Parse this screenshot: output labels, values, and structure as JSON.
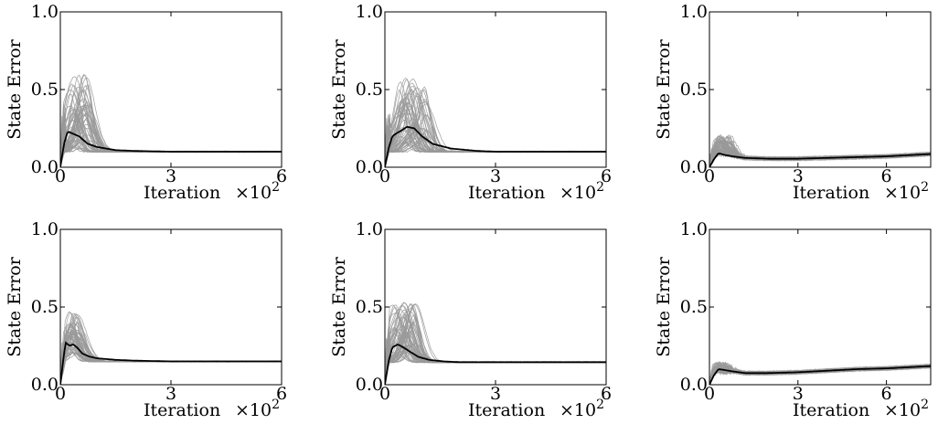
{
  "chart_data": [
    {
      "type": "line",
      "xlabel": "Iteration",
      "x_scale_label": "×10",
      "x_scale_exp": "2",
      "ylabel": "State Error",
      "xlim": [
        0,
        6
      ],
      "ylim": [
        0,
        1
      ],
      "xticks": [
        0,
        3,
        6
      ],
      "xtick_labels": [
        "0",
        "3",
        "6"
      ],
      "yticks": [
        0,
        0.5,
        1
      ],
      "ytick_labels": [
        "0.0",
        "0.5",
        "1.0"
      ],
      "series": [
        {
          "role": "individual runs",
          "color": "#999999",
          "count": 60,
          "peak_range": [
            0.12,
            0.6
          ],
          "peak_x_range": [
            0.25,
            0.75
          ],
          "final": 0.1
        },
        {
          "role": "mean",
          "color": "#000000",
          "x": [
            0,
            0.1,
            0.2,
            0.3,
            0.5,
            0.75,
            1.0,
            1.5,
            2.0,
            3.0,
            4.0,
            5.0,
            6.0
          ],
          "y": [
            0,
            0.15,
            0.23,
            0.22,
            0.2,
            0.15,
            0.13,
            0.11,
            0.105,
            0.1,
            0.1,
            0.1,
            0.1
          ]
        }
      ]
    },
    {
      "type": "line",
      "xlabel": "Iteration",
      "x_scale_label": "×10",
      "x_scale_exp": "2",
      "ylabel": "State Error",
      "xlim": [
        0,
        6
      ],
      "ylim": [
        0,
        1
      ],
      "xticks": [
        0,
        3,
        6
      ],
      "xtick_labels": [
        "0",
        "3",
        "6"
      ],
      "yticks": [
        0,
        0.5,
        1
      ],
      "ytick_labels": [
        "0.0",
        "0.5",
        "1.0"
      ],
      "series": [
        {
          "role": "individual runs",
          "color": "#999999",
          "count": 60,
          "peak_range": [
            0.15,
            0.58
          ],
          "peak_x_range": [
            0.35,
            1.15
          ],
          "final": 0.1
        },
        {
          "role": "mean",
          "color": "#000000",
          "x": [
            0,
            0.1,
            0.2,
            0.4,
            0.6,
            0.8,
            1.0,
            1.3,
            1.8,
            2.5,
            3.0,
            4.0,
            5.0,
            6.0
          ],
          "y": [
            0,
            0.12,
            0.2,
            0.23,
            0.26,
            0.25,
            0.2,
            0.15,
            0.12,
            0.105,
            0.1,
            0.1,
            0.1,
            0.1
          ]
        }
      ]
    },
    {
      "type": "line",
      "xlabel": "Iteration",
      "x_scale_label": "×10",
      "x_scale_exp": "2",
      "ylabel": "State Error",
      "xlim": [
        0,
        7.5
      ],
      "ylim": [
        0,
        1
      ],
      "xticks": [
        0,
        3,
        6
      ],
      "xtick_labels": [
        "0",
        "3",
        "6"
      ],
      "yticks": [
        0,
        0.5,
        1
      ],
      "ytick_labels": [
        "0.0",
        "0.5",
        "1.0"
      ],
      "series": [
        {
          "role": "individual runs",
          "color": "#999999",
          "count": 60,
          "peak_range": [
            0.06,
            0.2
          ],
          "peak_x_range": [
            0.3,
            0.7
          ],
          "final": 0.08
        },
        {
          "role": "mean",
          "color": "#000000",
          "x": [
            0,
            0.15,
            0.3,
            0.5,
            0.8,
            1.2,
            2.0,
            3.0,
            4.0,
            5.0,
            6.0,
            7.0,
            7.5
          ],
          "y": [
            0,
            0.05,
            0.09,
            0.08,
            0.07,
            0.06,
            0.055,
            0.055,
            0.06,
            0.065,
            0.07,
            0.08,
            0.085
          ]
        }
      ]
    },
    {
      "type": "line",
      "xlabel": "Iteration",
      "x_scale_label": "×10",
      "x_scale_exp": "2",
      "ylabel": "State Error",
      "xlim": [
        0,
        6
      ],
      "ylim": [
        0,
        1
      ],
      "xticks": [
        0,
        3,
        6
      ],
      "xtick_labels": [
        "0",
        "3",
        "6"
      ],
      "yticks": [
        0,
        0.5,
        1
      ],
      "ytick_labels": [
        "0.0",
        "0.5",
        "1.0"
      ],
      "series": [
        {
          "role": "individual runs",
          "color": "#999999",
          "count": 60,
          "peak_range": [
            0.2,
            0.48
          ],
          "peak_x_range": [
            0.15,
            0.5
          ],
          "final": 0.15
        },
        {
          "role": "mean",
          "color": "#000000",
          "x": [
            0,
            0.1,
            0.15,
            0.25,
            0.35,
            0.45,
            0.6,
            0.8,
            1.0,
            1.5,
            2.0,
            3.0,
            4.0,
            5.0,
            6.0
          ],
          "y": [
            0,
            0.2,
            0.27,
            0.25,
            0.26,
            0.24,
            0.2,
            0.18,
            0.17,
            0.16,
            0.155,
            0.15,
            0.15,
            0.15,
            0.15
          ]
        }
      ]
    },
    {
      "type": "line",
      "xlabel": "Iteration",
      "x_scale_label": "×10",
      "x_scale_exp": "2",
      "ylabel": "State Error",
      "xlim": [
        0,
        6
      ],
      "ylim": [
        0,
        1
      ],
      "xticks": [
        0,
        3,
        6
      ],
      "xtick_labels": [
        "0",
        "3",
        "6"
      ],
      "yticks": [
        0,
        0.5,
        1
      ],
      "ytick_labels": [
        "0.0",
        "0.5",
        "1.0"
      ],
      "series": [
        {
          "role": "individual runs",
          "color": "#999999",
          "count": 60,
          "peak_range": [
            0.2,
            0.53
          ],
          "peak_x_range": [
            0.2,
            0.85
          ],
          "final": 0.145
        },
        {
          "role": "mean",
          "color": "#000000",
          "x": [
            0,
            0.1,
            0.2,
            0.35,
            0.5,
            0.7,
            0.9,
            1.2,
            1.6,
            2.0,
            3.0,
            4.0,
            5.0,
            6.0
          ],
          "y": [
            0,
            0.15,
            0.24,
            0.26,
            0.24,
            0.21,
            0.18,
            0.16,
            0.15,
            0.145,
            0.145,
            0.145,
            0.145,
            0.145
          ]
        }
      ]
    },
    {
      "type": "line",
      "xlabel": "Iteration",
      "x_scale_label": "×10",
      "x_scale_exp": "2",
      "ylabel": "State Error",
      "xlim": [
        0,
        7.5
      ],
      "ylim": [
        0,
        1
      ],
      "xticks": [
        0,
        3,
        6
      ],
      "xtick_labels": [
        "0",
        "3",
        "6"
      ],
      "yticks": [
        0,
        0.5,
        1
      ],
      "ytick_labels": [
        "0.0",
        "0.5",
        "1.0"
      ],
      "series": [
        {
          "role": "individual runs",
          "color": "#999999",
          "count": 60,
          "peak_range": [
            0.07,
            0.14
          ],
          "peak_x_range": [
            0.2,
            0.6
          ],
          "final": 0.12
        },
        {
          "role": "mean",
          "color": "#000000",
          "x": [
            0,
            0.15,
            0.3,
            0.5,
            0.8,
            1.2,
            2.0,
            3.0,
            4.0,
            5.0,
            6.0,
            7.0,
            7.5
          ],
          "y": [
            0,
            0.06,
            0.1,
            0.095,
            0.085,
            0.075,
            0.075,
            0.08,
            0.09,
            0.1,
            0.105,
            0.115,
            0.12
          ]
        }
      ]
    }
  ]
}
